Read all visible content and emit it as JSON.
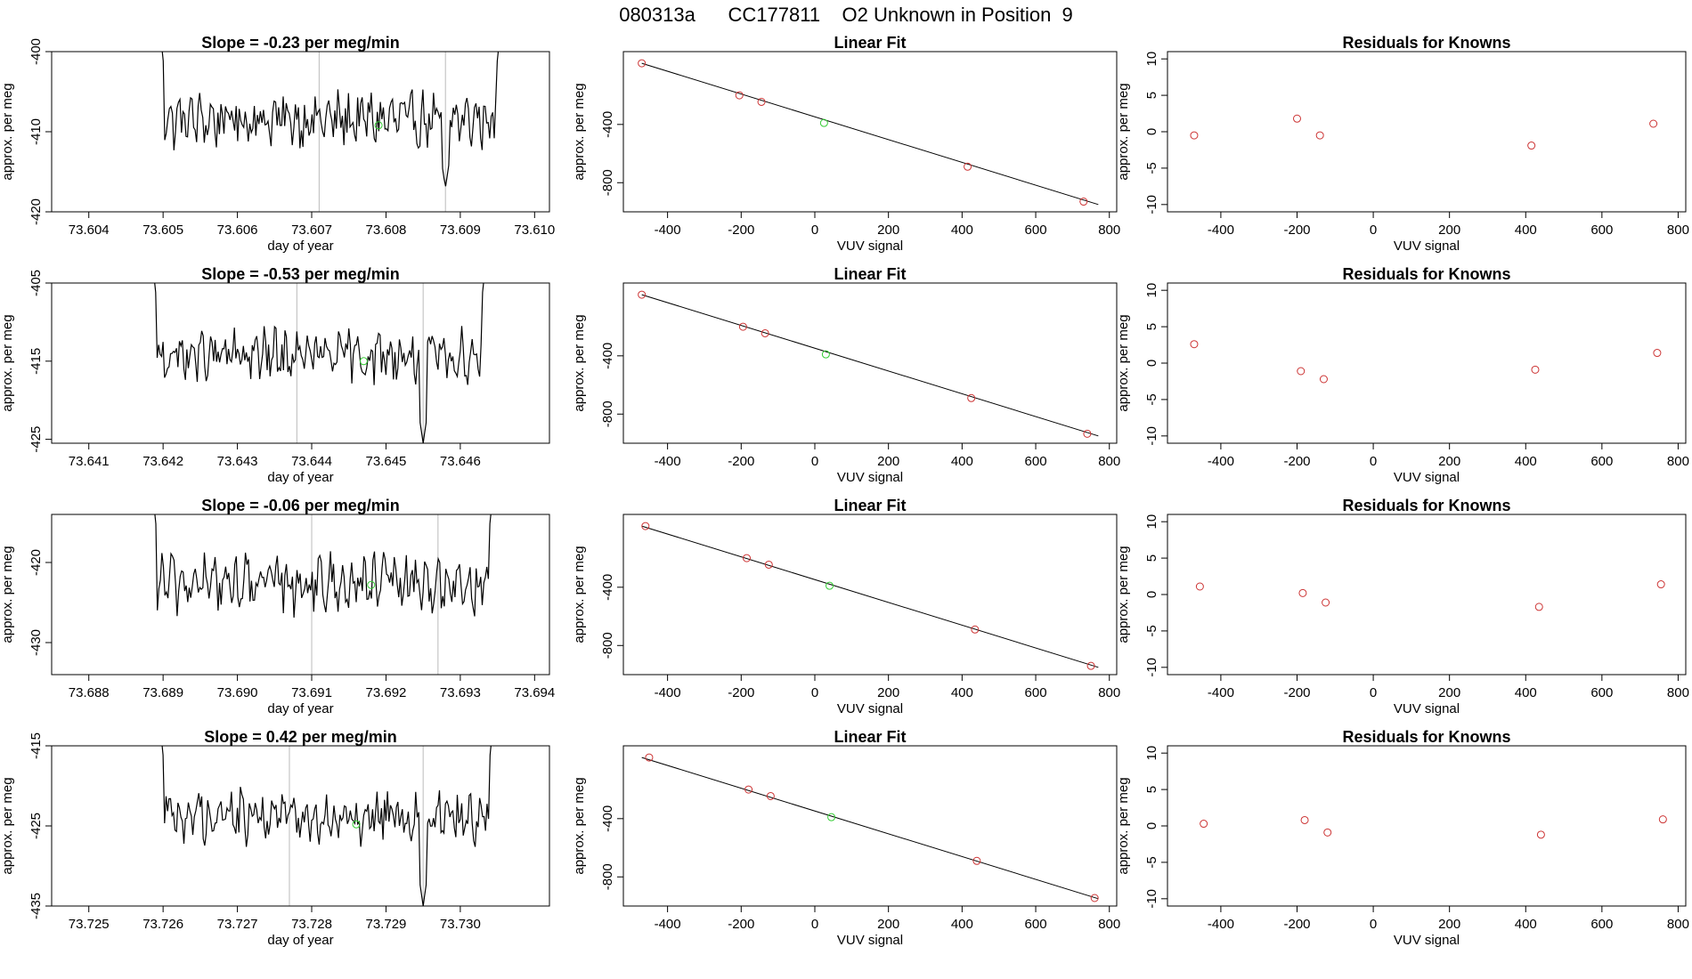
{
  "page_title": "080313a      CC177811    O2 Unknown in Position  9",
  "colors": {
    "axis": "#000000",
    "trace": "#000000",
    "known_point": "#cc3333",
    "unknown_point": "#33cc33",
    "vline": "#bbbbbb"
  },
  "chart_data": [
    {
      "panel": "timeseries",
      "type": "line",
      "row": 1,
      "title": "Slope =  -0.23  per meg/min",
      "xlabel": "day of year",
      "ylabel": "approx. per meg",
      "xlim": [
        73.6035,
        73.6102
      ],
      "ylim": [
        -420,
        -400
      ],
      "xticks": [
        "73.604",
        "73.605",
        "73.606",
        "73.607",
        "73.608",
        "73.609",
        "73.610"
      ],
      "yticks": [
        "-400",
        "-410",
        "-420"
      ],
      "trace_x_range": [
        73.6049,
        73.6096
      ],
      "trace_center": -408.5,
      "trace_amplitude": 2.6,
      "vlines": [
        73.6071,
        73.6088
      ],
      "dip_x": 73.6088,
      "dip_y": -417,
      "unknown_point": {
        "x": 73.6079,
        "y": -409.2
      }
    },
    {
      "panel": "linear_fit",
      "type": "scatter",
      "row": 1,
      "title": "Linear Fit",
      "xlabel": "VUV signal",
      "ylabel": "approx. per meg",
      "xlim": [
        -520,
        820
      ],
      "ylim": [
        -1000,
        100
      ],
      "xticks": [
        "-400",
        "-200",
        "0",
        "200",
        "400",
        "600",
        "800"
      ],
      "yticks": [
        "-400",
        "-800"
      ],
      "fit_line": {
        "x": [
          -470,
          770
        ],
        "y": [
          20,
          -950
        ]
      },
      "knowns": [
        {
          "x": -470,
          "y": 20
        },
        {
          "x": -205,
          "y": -200
        },
        {
          "x": -145,
          "y": -245
        },
        {
          "x": 415,
          "y": -690
        },
        {
          "x": 730,
          "y": -930
        }
      ],
      "unknown": {
        "x": 25,
        "y": -390
      }
    },
    {
      "panel": "residuals",
      "type": "scatter",
      "row": 1,
      "title": "Residuals for Knowns",
      "xlabel": "VUV signal",
      "ylabel": "approx. per meg",
      "xlim": [
        -540,
        820
      ],
      "ylim": [
        -11,
        11
      ],
      "xticks": [
        "-400",
        "-200",
        "0",
        "200",
        "400",
        "600",
        "800"
      ],
      "yticks": [
        "10",
        "5",
        "0",
        "-5",
        "-10"
      ],
      "points": [
        {
          "x": -470,
          "y": -0.5
        },
        {
          "x": -200,
          "y": 1.8
        },
        {
          "x": -140,
          "y": -0.5
        },
        {
          "x": 415,
          "y": -1.9
        },
        {
          "x": 735,
          "y": 1.1
        }
      ]
    },
    {
      "panel": "timeseries",
      "type": "line",
      "row": 2,
      "title": "Slope =  -0.53  per meg/min",
      "xlabel": "day of year",
      "ylabel": "approx. per meg",
      "xlim": [
        73.6405,
        73.6472
      ],
      "ylim": [
        -425.5,
        -405
      ],
      "xticks": [
        "73.641",
        "73.642",
        "73.643",
        "73.644",
        "73.645",
        "73.646"
      ],
      "yticks": [
        "-405",
        "-415",
        "-425"
      ],
      "trace_x_range": [
        73.6418,
        73.6464
      ],
      "trace_center": -414.3,
      "trace_amplitude": 2.5,
      "vlines": [
        73.6438,
        73.6455
      ],
      "dip_x": 73.6455,
      "dip_y": -425.5,
      "unknown_point": {
        "x": 73.6447,
        "y": -415
      }
    },
    {
      "panel": "linear_fit",
      "type": "scatter",
      "row": 2,
      "title": "Linear Fit",
      "xlabel": "VUV signal",
      "ylabel": "approx. per meg",
      "xlim": [
        -520,
        820
      ],
      "ylim": [
        -1000,
        100
      ],
      "xticks": [
        "-400",
        "-200",
        "0",
        "200",
        "400",
        "600",
        "800"
      ],
      "yticks": [
        "-400",
        "-800"
      ],
      "fit_line": {
        "x": [
          -470,
          770
        ],
        "y": [
          20,
          -950
        ]
      },
      "knowns": [
        {
          "x": -470,
          "y": 20
        },
        {
          "x": -195,
          "y": -200
        },
        {
          "x": -135,
          "y": -245
        },
        {
          "x": 425,
          "y": -690
        },
        {
          "x": 740,
          "y": -935
        }
      ],
      "unknown": {
        "x": 30,
        "y": -390
      }
    },
    {
      "panel": "residuals",
      "type": "scatter",
      "row": 2,
      "title": "Residuals for Knowns",
      "xlabel": "VUV signal",
      "ylabel": "approx. per meg",
      "xlim": [
        -540,
        820
      ],
      "ylim": [
        -11,
        11
      ],
      "xticks": [
        "-400",
        "-200",
        "0",
        "200",
        "400",
        "600",
        "800"
      ],
      "yticks": [
        "10",
        "5",
        "0",
        "-5",
        "-10"
      ],
      "points": [
        {
          "x": -470,
          "y": 2.6
        },
        {
          "x": -190,
          "y": -1.1
        },
        {
          "x": -130,
          "y": -2.2
        },
        {
          "x": 425,
          "y": -0.9
        },
        {
          "x": 745,
          "y": 1.4
        }
      ]
    },
    {
      "panel": "timeseries",
      "type": "line",
      "row": 3,
      "title": "Slope =  -0.06  per meg/min",
      "xlabel": "day of year",
      "ylabel": "approx. per meg",
      "xlim": [
        73.6875,
        73.6942
      ],
      "ylim": [
        -434,
        -414
      ],
      "xticks": [
        "73.688",
        "73.689",
        "73.690",
        "73.691",
        "73.692",
        "73.693",
        "73.694"
      ],
      "yticks": [
        "-420",
        "-430"
      ],
      "trace_x_range": [
        73.6888,
        73.6935
      ],
      "trace_center": -422.6,
      "trace_amplitude": 2.7,
      "vlines": [
        73.691,
        73.6927
      ],
      "dip_x": null,
      "dip_y": null,
      "unknown_point": {
        "x": 73.6918,
        "y": -422.8
      }
    },
    {
      "panel": "linear_fit",
      "type": "scatter",
      "row": 3,
      "title": "Linear Fit",
      "xlabel": "VUV signal",
      "ylabel": "approx. per meg",
      "xlim": [
        -520,
        820
      ],
      "ylim": [
        -1000,
        100
      ],
      "xticks": [
        "-400",
        "-200",
        "0",
        "200",
        "400",
        "600",
        "800"
      ],
      "yticks": [
        "-400",
        "-800"
      ],
      "fit_line": {
        "x": [
          -470,
          770
        ],
        "y": [
          20,
          -950
        ]
      },
      "knowns": [
        {
          "x": -460,
          "y": 20
        },
        {
          "x": -185,
          "y": -200
        },
        {
          "x": -125,
          "y": -245
        },
        {
          "x": 435,
          "y": -690
        },
        {
          "x": 750,
          "y": -940
        }
      ],
      "unknown": {
        "x": 40,
        "y": -390
      }
    },
    {
      "panel": "residuals",
      "type": "scatter",
      "row": 3,
      "title": "Residuals for Knowns",
      "xlabel": "VUV signal",
      "ylabel": "approx. per meg",
      "xlim": [
        -540,
        820
      ],
      "ylim": [
        -11,
        11
      ],
      "xticks": [
        "-400",
        "-200",
        "0",
        "200",
        "400",
        "600",
        "800"
      ],
      "yticks": [
        "10",
        "5",
        "0",
        "-5",
        "-10"
      ],
      "points": [
        {
          "x": -455,
          "y": 1.1
        },
        {
          "x": -185,
          "y": 0.2
        },
        {
          "x": -125,
          "y": -1.1
        },
        {
          "x": 435,
          "y": -1.7
        },
        {
          "x": 755,
          "y": 1.4
        }
      ]
    },
    {
      "panel": "timeseries",
      "type": "line",
      "row": 4,
      "title": "Slope =  0.42  per meg/min",
      "xlabel": "day of year",
      "ylabel": "approx. per meg",
      "xlim": [
        73.7245,
        73.7312
      ],
      "ylim": [
        -435,
        -415
      ],
      "xticks": [
        "73.725",
        "73.726",
        "73.727",
        "73.728",
        "73.729",
        "73.730"
      ],
      "yticks": [
        "-415",
        "-425",
        "-435"
      ],
      "trace_x_range": [
        73.7259,
        73.7305
      ],
      "trace_center": -423.7,
      "trace_amplitude": 2.5,
      "vlines": [
        73.7277,
        73.7295
      ],
      "dip_x": 73.7295,
      "dip_y": -435,
      "unknown_point": {
        "x": 73.7286,
        "y": -424.8
      }
    },
    {
      "panel": "linear_fit",
      "type": "scatter",
      "row": 4,
      "title": "Linear Fit",
      "xlabel": "VUV signal",
      "ylabel": "approx. per meg",
      "xlim": [
        -520,
        820
      ],
      "ylim": [
        -1000,
        100
      ],
      "xticks": [
        "-400",
        "-200",
        "0",
        "200",
        "400",
        "600",
        "800"
      ],
      "yticks": [
        "-400",
        "-800"
      ],
      "fit_line": {
        "x": [
          -470,
          770
        ],
        "y": [
          20,
          -950
        ]
      },
      "knowns": [
        {
          "x": -450,
          "y": 20
        },
        {
          "x": -180,
          "y": -200
        },
        {
          "x": -120,
          "y": -245
        },
        {
          "x": 440,
          "y": -690
        },
        {
          "x": 760,
          "y": -945
        }
      ],
      "unknown": {
        "x": 45,
        "y": -390
      }
    },
    {
      "panel": "residuals",
      "type": "scatter",
      "row": 4,
      "title": "Residuals for Knowns",
      "xlabel": "VUV signal",
      "ylabel": "approx. per meg",
      "xlim": [
        -540,
        820
      ],
      "ylim": [
        -11,
        11
      ],
      "xticks": [
        "-400",
        "-200",
        "0",
        "200",
        "400",
        "600",
        "800"
      ],
      "yticks": [
        "10",
        "5",
        "0",
        "-5",
        "-10"
      ],
      "points": [
        {
          "x": -445,
          "y": 0.3
        },
        {
          "x": -180,
          "y": 0.8
        },
        {
          "x": -120,
          "y": -0.9
        },
        {
          "x": 440,
          "y": -1.2
        },
        {
          "x": 760,
          "y": 0.9
        }
      ]
    }
  ]
}
